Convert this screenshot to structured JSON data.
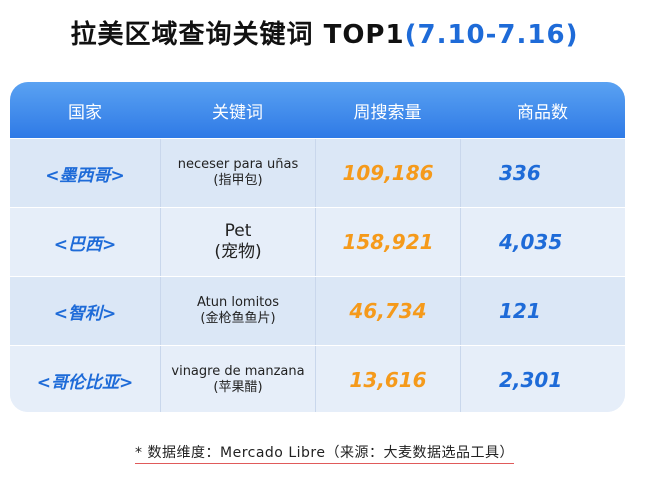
{
  "title": {
    "main": "拉美区域查询关键词 TOP1",
    "range": "(7.10-7.16)"
  },
  "table": {
    "headers": [
      "国家",
      "关键词",
      "周搜索量",
      "商品数"
    ],
    "rows": [
      {
        "country": "<墨西哥>",
        "keyword_es": "neceser para uñas",
        "keyword_zh": "(指甲包)",
        "volume": "109,186",
        "count": "336",
        "big": false
      },
      {
        "country": "<巴西>",
        "keyword_es": "Pet",
        "keyword_zh": "(宠物)",
        "volume": "158,921",
        "count": "4,035",
        "big": true
      },
      {
        "country": "<智利>",
        "keyword_es": "Atun lomitos",
        "keyword_zh": "(金枪鱼鱼片)",
        "volume": "46,734",
        "count": "121",
        "big": false
      },
      {
        "country": "<哥伦比亚>",
        "keyword_es": "vinagre de manzana",
        "keyword_zh": "(苹果醋)",
        "volume": "13,616",
        "count": "2,301",
        "big": false
      }
    ]
  },
  "footnote": "* 数据维度：Mercado Libre（来源：大麦数据选品工具）",
  "colors": {
    "header_gradient_top": "#5aa2f2",
    "header_gradient_bottom": "#2f7ae6",
    "accent_blue": "#1e6bd8",
    "volume_orange": "#f59a1b"
  }
}
